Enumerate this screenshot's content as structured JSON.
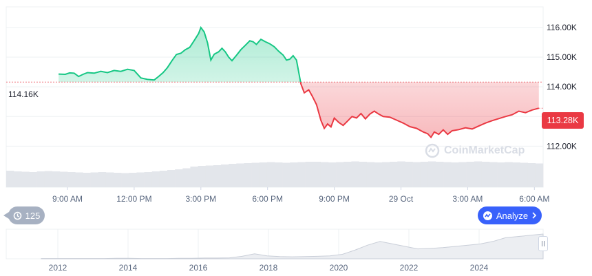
{
  "chart_data": {
    "type": "area",
    "reference_value": 114160,
    "reference_label": "114.16K",
    "current_value": 113280,
    "current_label": "113.28K",
    "y_ticks": [
      {
        "value": 116000,
        "label": "116.00K"
      },
      {
        "value": 115000,
        "label": "115.00K"
      },
      {
        "value": 114000,
        "label": "114.00K"
      },
      {
        "value": 113000,
        "label": "113.00K"
      },
      {
        "value": 112000,
        "label": "112.00K"
      }
    ],
    "ylim": [
      111500,
      116600
    ],
    "x_ticks": [
      {
        "label": "9:00 AM",
        "t": 0
      },
      {
        "label": "12:00 PM",
        "t": 3
      },
      {
        "label": "3:00 PM",
        "t": 6
      },
      {
        "label": "6:00 PM",
        "t": 9
      },
      {
        "label": "9:00 PM",
        "t": 12
      },
      {
        "label": "29 Oct",
        "t": 15
      },
      {
        "label": "3:00 AM",
        "t": 18
      },
      {
        "label": "6:00 AM",
        "t": 21
      }
    ],
    "xlim": [
      -1.5,
      21.2
    ],
    "series": [
      {
        "points": [
          [
            -0.4,
            114430
          ],
          [
            -0.1,
            114420
          ],
          [
            0.1,
            114470
          ],
          [
            0.3,
            114460
          ],
          [
            0.5,
            114350
          ],
          [
            0.7,
            114420
          ],
          [
            0.9,
            114480
          ],
          [
            1.2,
            114460
          ],
          [
            1.5,
            114520
          ],
          [
            1.8,
            114480
          ],
          [
            2.1,
            114550
          ],
          [
            2.4,
            114520
          ],
          [
            2.7,
            114590
          ],
          [
            3.0,
            114550
          ],
          [
            3.3,
            114300
          ],
          [
            3.6,
            114250
          ],
          [
            3.9,
            114230
          ],
          [
            4.1,
            114350
          ],
          [
            4.3,
            114480
          ],
          [
            4.5,
            114650
          ],
          [
            4.7,
            114880
          ],
          [
            4.9,
            115090
          ],
          [
            5.1,
            115130
          ],
          [
            5.3,
            115250
          ],
          [
            5.5,
            115330
          ],
          [
            5.7,
            115560
          ],
          [
            5.9,
            115800
          ],
          [
            6.0,
            116000
          ],
          [
            6.15,
            115850
          ],
          [
            6.3,
            115480
          ],
          [
            6.45,
            114900
          ],
          [
            6.6,
            115100
          ],
          [
            6.8,
            115180
          ],
          [
            6.95,
            115300
          ],
          [
            7.1,
            115180
          ],
          [
            7.25,
            115000
          ],
          [
            7.4,
            114880
          ],
          [
            7.6,
            115060
          ],
          [
            7.8,
            115250
          ],
          [
            8.0,
            115400
          ],
          [
            8.2,
            115550
          ],
          [
            8.35,
            115520
          ],
          [
            8.5,
            115430
          ],
          [
            8.7,
            115600
          ],
          [
            8.9,
            115520
          ],
          [
            9.1,
            115450
          ],
          [
            9.3,
            115350
          ],
          [
            9.5,
            115200
          ],
          [
            9.7,
            115070
          ],
          [
            9.85,
            114900
          ],
          [
            10.0,
            114930
          ],
          [
            10.15,
            115050
          ],
          [
            10.3,
            114900
          ],
          [
            10.4,
            114500
          ],
          [
            10.5,
            114100
          ],
          [
            10.65,
            113800
          ],
          [
            10.85,
            113900
          ],
          [
            11.0,
            113700
          ],
          [
            11.2,
            113400
          ],
          [
            11.4,
            112870
          ],
          [
            11.55,
            112600
          ],
          [
            11.7,
            112750
          ],
          [
            11.85,
            112650
          ],
          [
            12.0,
            112950
          ],
          [
            12.2,
            112800
          ],
          [
            12.4,
            112700
          ],
          [
            12.6,
            112850
          ],
          [
            12.8,
            113000
          ],
          [
            13.0,
            112950
          ],
          [
            13.2,
            113100
          ],
          [
            13.4,
            112920
          ],
          [
            13.6,
            113080
          ],
          [
            13.8,
            113180
          ],
          [
            14.0,
            113080
          ],
          [
            14.2,
            113000
          ],
          [
            14.5,
            112980
          ],
          [
            14.8,
            112880
          ],
          [
            15.1,
            112780
          ],
          [
            15.4,
            112660
          ],
          [
            15.7,
            112600
          ],
          [
            16.0,
            112480
          ],
          [
            16.2,
            112420
          ],
          [
            16.35,
            112300
          ],
          [
            16.5,
            112480
          ],
          [
            16.7,
            112400
          ],
          [
            16.9,
            112550
          ],
          [
            17.1,
            112400
          ],
          [
            17.3,
            112520
          ],
          [
            17.6,
            112560
          ],
          [
            17.9,
            112620
          ],
          [
            18.2,
            112580
          ],
          [
            18.5,
            112680
          ],
          [
            18.8,
            112780
          ],
          [
            19.1,
            112860
          ],
          [
            19.4,
            112930
          ],
          [
            19.7,
            113000
          ],
          [
            20.0,
            113060
          ],
          [
            20.3,
            113180
          ],
          [
            20.6,
            113130
          ],
          [
            20.9,
            113220
          ],
          [
            21.2,
            113280
          ]
        ]
      }
    ],
    "colors": {
      "up": "#16c784",
      "down": "#ea3943",
      "grid": "#eef0f3",
      "text": "#58667e"
    }
  },
  "volume": {
    "min": 1,
    "max": 1,
    "values": [
      0.48,
      0.46,
      0.45,
      0.44,
      0.46,
      0.47,
      0.46,
      0.45,
      0.44,
      0.43,
      0.42,
      0.43,
      0.44,
      0.43,
      0.42,
      0.41,
      0.42,
      0.43,
      0.44,
      0.46,
      0.48,
      0.5,
      0.52,
      0.55,
      0.6,
      0.62,
      0.63,
      0.64,
      0.66,
      0.68,
      0.69,
      0.7,
      0.71,
      0.72,
      0.73,
      0.72,
      0.71,
      0.72,
      0.73,
      0.74,
      0.74,
      0.73,
      0.72,
      0.73,
      0.74,
      0.75,
      0.74,
      0.73,
      0.72,
      0.73,
      0.74,
      0.75,
      0.74,
      0.73,
      0.74,
      0.75,
      0.74,
      0.73,
      0.72,
      0.73,
      0.74,
      0.75,
      0.74,
      0.73,
      0.72,
      0.73,
      0.72,
      0.71,
      0.7,
      0.69
    ]
  },
  "navigator": {
    "year_ticks": [
      "2012",
      "2014",
      "2016",
      "2018",
      "2020",
      "2022",
      "2024"
    ],
    "values": [
      0.01,
      0.01,
      0.01,
      0.01,
      0.01,
      0.01,
      0.02,
      0.02,
      0.01,
      0.01,
      0.01,
      0.02,
      0.02,
      0.03,
      0.03,
      0.04,
      0.1,
      0.2,
      0.12,
      0.09,
      0.08,
      0.09,
      0.1,
      0.12,
      0.18,
      0.35,
      0.55,
      0.7,
      0.6,
      0.5,
      0.4,
      0.42,
      0.45,
      0.5,
      0.55,
      0.6,
      0.7,
      0.85,
      0.9,
      0.95,
      1.0
    ]
  },
  "buttons": {
    "history_label": "125",
    "analyze_label": "Analyze"
  },
  "watermark": "CoinMarketCap"
}
